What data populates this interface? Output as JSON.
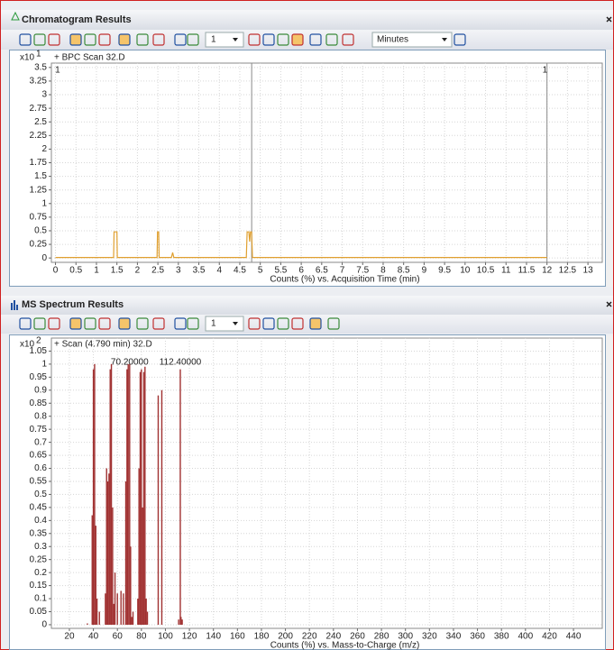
{
  "windows": [
    {
      "title": "Chromatogram Results",
      "toolbar": {
        "count": "1",
        "units": "Minutes"
      }
    },
    {
      "title": "MS Spectrum Results",
      "toolbar": {
        "count": "1"
      }
    }
  ],
  "chart_data": [
    {
      "type": "line",
      "subtitle": "+ BPC Scan 32.D",
      "y_scale": "x10",
      "y_scale_exponent": "1",
      "x_label": "Counts (%) vs. Acquisition Time (min)",
      "color": "#e0a030",
      "x": [
        0,
        1.42,
        1.43,
        1.5,
        1.51,
        2.48,
        2.49,
        2.52,
        2.53,
        2.83,
        2.86,
        2.89,
        4.66,
        4.68,
        4.72,
        4.74,
        4.76,
        4.79,
        4.81,
        12
      ],
      "values": [
        0.01,
        0.01,
        0.48,
        0.48,
        0.01,
        0.01,
        0.48,
        0.48,
        0.01,
        0.01,
        0.1,
        0.01,
        0.01,
        0.48,
        0.48,
        0.3,
        0.48,
        0.48,
        0.01,
        0.01
      ],
      "lines": [
        4.79,
        12
      ],
      "markers": [
        {
          "x": 0.1,
          "label": "1"
        },
        {
          "x": 12,
          "label": "1"
        }
      ],
      "xlim": [
        -0.1,
        13.35
      ],
      "ylim": [
        -0.08,
        3.58
      ],
      "xticks": [
        0,
        0.5,
        1,
        1.5,
        2,
        2.5,
        3,
        3.5,
        4,
        4.5,
        5,
        5.5,
        6,
        6.5,
        7,
        7.5,
        8,
        8.5,
        9,
        9.5,
        10,
        10.5,
        11,
        11.5,
        12,
        12.5,
        13
      ],
      "yticks": [
        0,
        0.25,
        0.5,
        0.75,
        1,
        1.25,
        1.5,
        1.75,
        2,
        2.25,
        2.5,
        2.75,
        3,
        3.25,
        3.5
      ],
      "grid": true
    },
    {
      "type": "bar",
      "subtitle": "+ Scan (4.790 min) 32.D",
      "y_scale": "x10",
      "y_scale_exponent": "2",
      "x_label": "Counts (%) vs. Mass-to-Charge (m/z)",
      "color": "#a03030",
      "x": [
        35,
        39,
        40,
        41,
        42,
        43,
        45,
        50,
        51,
        52,
        53,
        54,
        55,
        56,
        57,
        58,
        60,
        63,
        65,
        67,
        68,
        69,
        70.2,
        71,
        72,
        73,
        77,
        78,
        79,
        80,
        81,
        82,
        83,
        84,
        85,
        94,
        97,
        111,
        112.4,
        113,
        114
      ],
      "values": [
        0.005,
        0.42,
        0.98,
        1.0,
        0.38,
        0.1,
        0.05,
        0.12,
        0.6,
        0.55,
        0.58,
        0.98,
        1.0,
        0.45,
        0.08,
        0.2,
        0.12,
        0.13,
        0.12,
        0.55,
        0.98,
        1.0,
        1.0,
        0.3,
        0.03,
        0.05,
        0.1,
        0.6,
        0.97,
        0.98,
        0.45,
        0.97,
        0.99,
        0.1,
        0.05,
        0.88,
        0.9,
        0.02,
        0.98,
        0.03,
        0.02
      ],
      "annotations": [
        {
          "x": 70.2,
          "label": "70.20000"
        },
        {
          "x": 112.4,
          "label": "112.40000"
        }
      ],
      "xlim": [
        5,
        464
      ],
      "ylim": [
        -0.014,
        1.1
      ],
      "xticks": [
        20,
        40,
        60,
        80,
        100,
        120,
        140,
        160,
        180,
        200,
        220,
        240,
        260,
        280,
        300,
        320,
        340,
        360,
        380,
        400,
        420,
        440
      ],
      "yticks": [
        0,
        0.05,
        0.1,
        0.15,
        0.2,
        0.25,
        0.3,
        0.35,
        0.4,
        0.45,
        0.5,
        0.55,
        0.6,
        0.65,
        0.7,
        0.75,
        0.8,
        0.85,
        0.9,
        0.95,
        1,
        1.05
      ],
      "grid": true
    }
  ]
}
